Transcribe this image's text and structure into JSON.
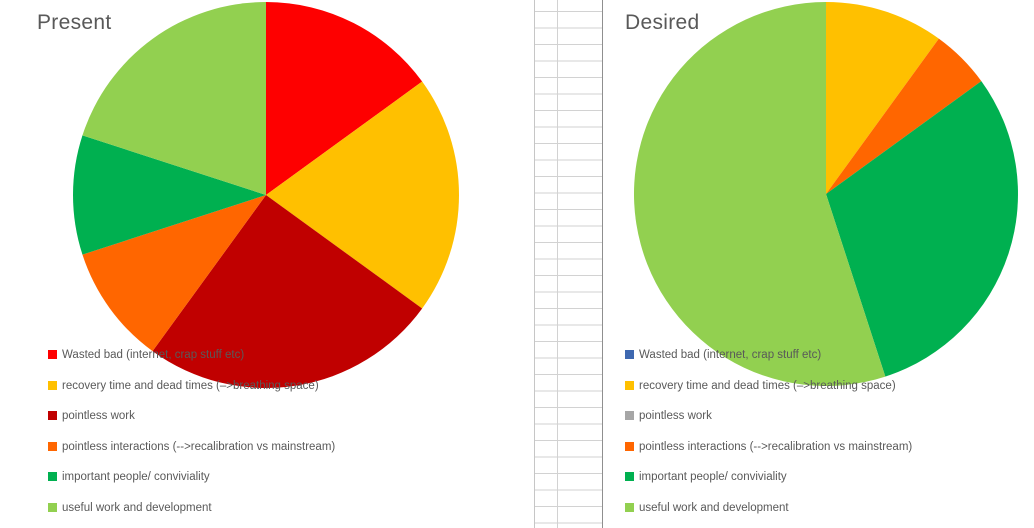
{
  "chart_data": [
    {
      "type": "pie",
      "title": "Present",
      "labels": [
        "Wasted bad (internet, crap stuff etc)",
        "recovery time and dead times (–>breathing space)",
        "pointless work",
        "pointless interactions (-->recalibration vs mainstream)",
        "important people/ conviviality",
        "useful work and development"
      ],
      "values": [
        15,
        20,
        25,
        10,
        10,
        20
      ],
      "unit": "percent",
      "colors": [
        "#fe0000",
        "#ffc000",
        "#c00000",
        "#ff6600",
        "#00b050",
        "#92d050"
      ],
      "legend_position": "bottom-left",
      "start_angle_deg": 0,
      "direction": "clockwise"
    },
    {
      "type": "pie",
      "title": "Desired",
      "labels": [
        "Wasted bad (internet, crap stuff etc)",
        "recovery time and dead times (–>breathing space)",
        "pointless work",
        "pointless interactions (-->recalibration vs mainstream)",
        "important people/ conviviality",
        "useful work and development"
      ],
      "values": [
        0,
        10,
        0,
        5,
        30,
        55
      ],
      "unit": "percent",
      "colors": [
        "#3e68b0",
        "#ffc000",
        "#a6a6a6",
        "#ff6600",
        "#00b050",
        "#92d050"
      ],
      "legend_position": "bottom-left",
      "start_angle_deg": 0,
      "direction": "clockwise"
    }
  ],
  "palette": {
    "title_text": "#595959",
    "legend_text": "#595959",
    "worksheet_gridline": "#d2d2d2",
    "left_chart_border": "#c6c6c6",
    "right_chart_border": "#8f8f8f",
    "background": "#ffffff"
  }
}
